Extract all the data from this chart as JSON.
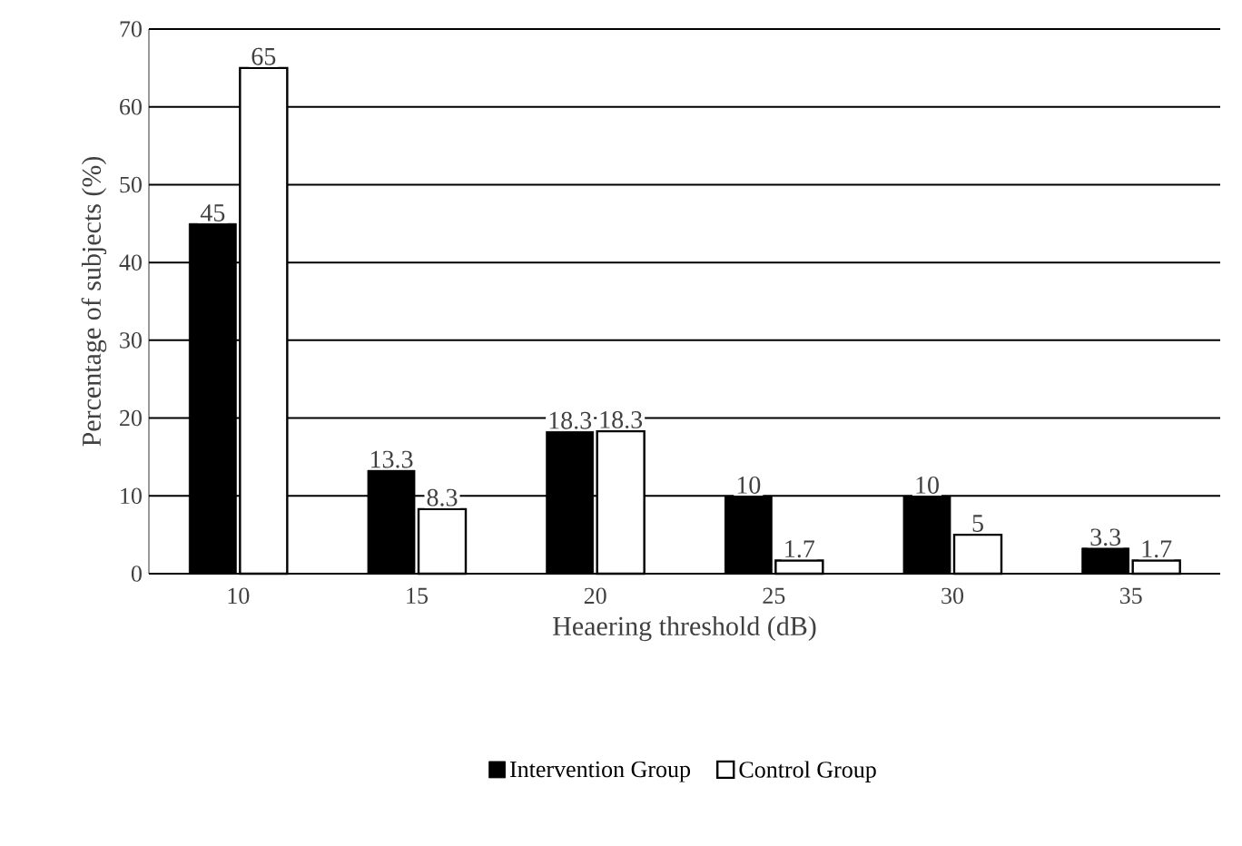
{
  "chart_data": {
    "type": "bar",
    "xlabel": "Heaering threshold (dB)",
    "ylabel": "Percentage of subjects (%)",
    "categories": [
      "10",
      "15",
      "20",
      "25",
      "30",
      "35"
    ],
    "series": [
      {
        "name": "Intervention Group",
        "color": "#000000",
        "values": [
          45,
          13.3,
          18.3,
          10,
          10,
          3.3
        ]
      },
      {
        "name": "Control Group",
        "color": "#ffffff",
        "values": [
          65,
          8.3,
          18.3,
          1.7,
          5,
          1.7
        ]
      }
    ],
    "ylim": [
      0,
      70
    ],
    "yticks": [
      0,
      10,
      20,
      30,
      40,
      50,
      60,
      70
    ],
    "grid": "y",
    "legend": "bottom",
    "data_labels": true
  }
}
